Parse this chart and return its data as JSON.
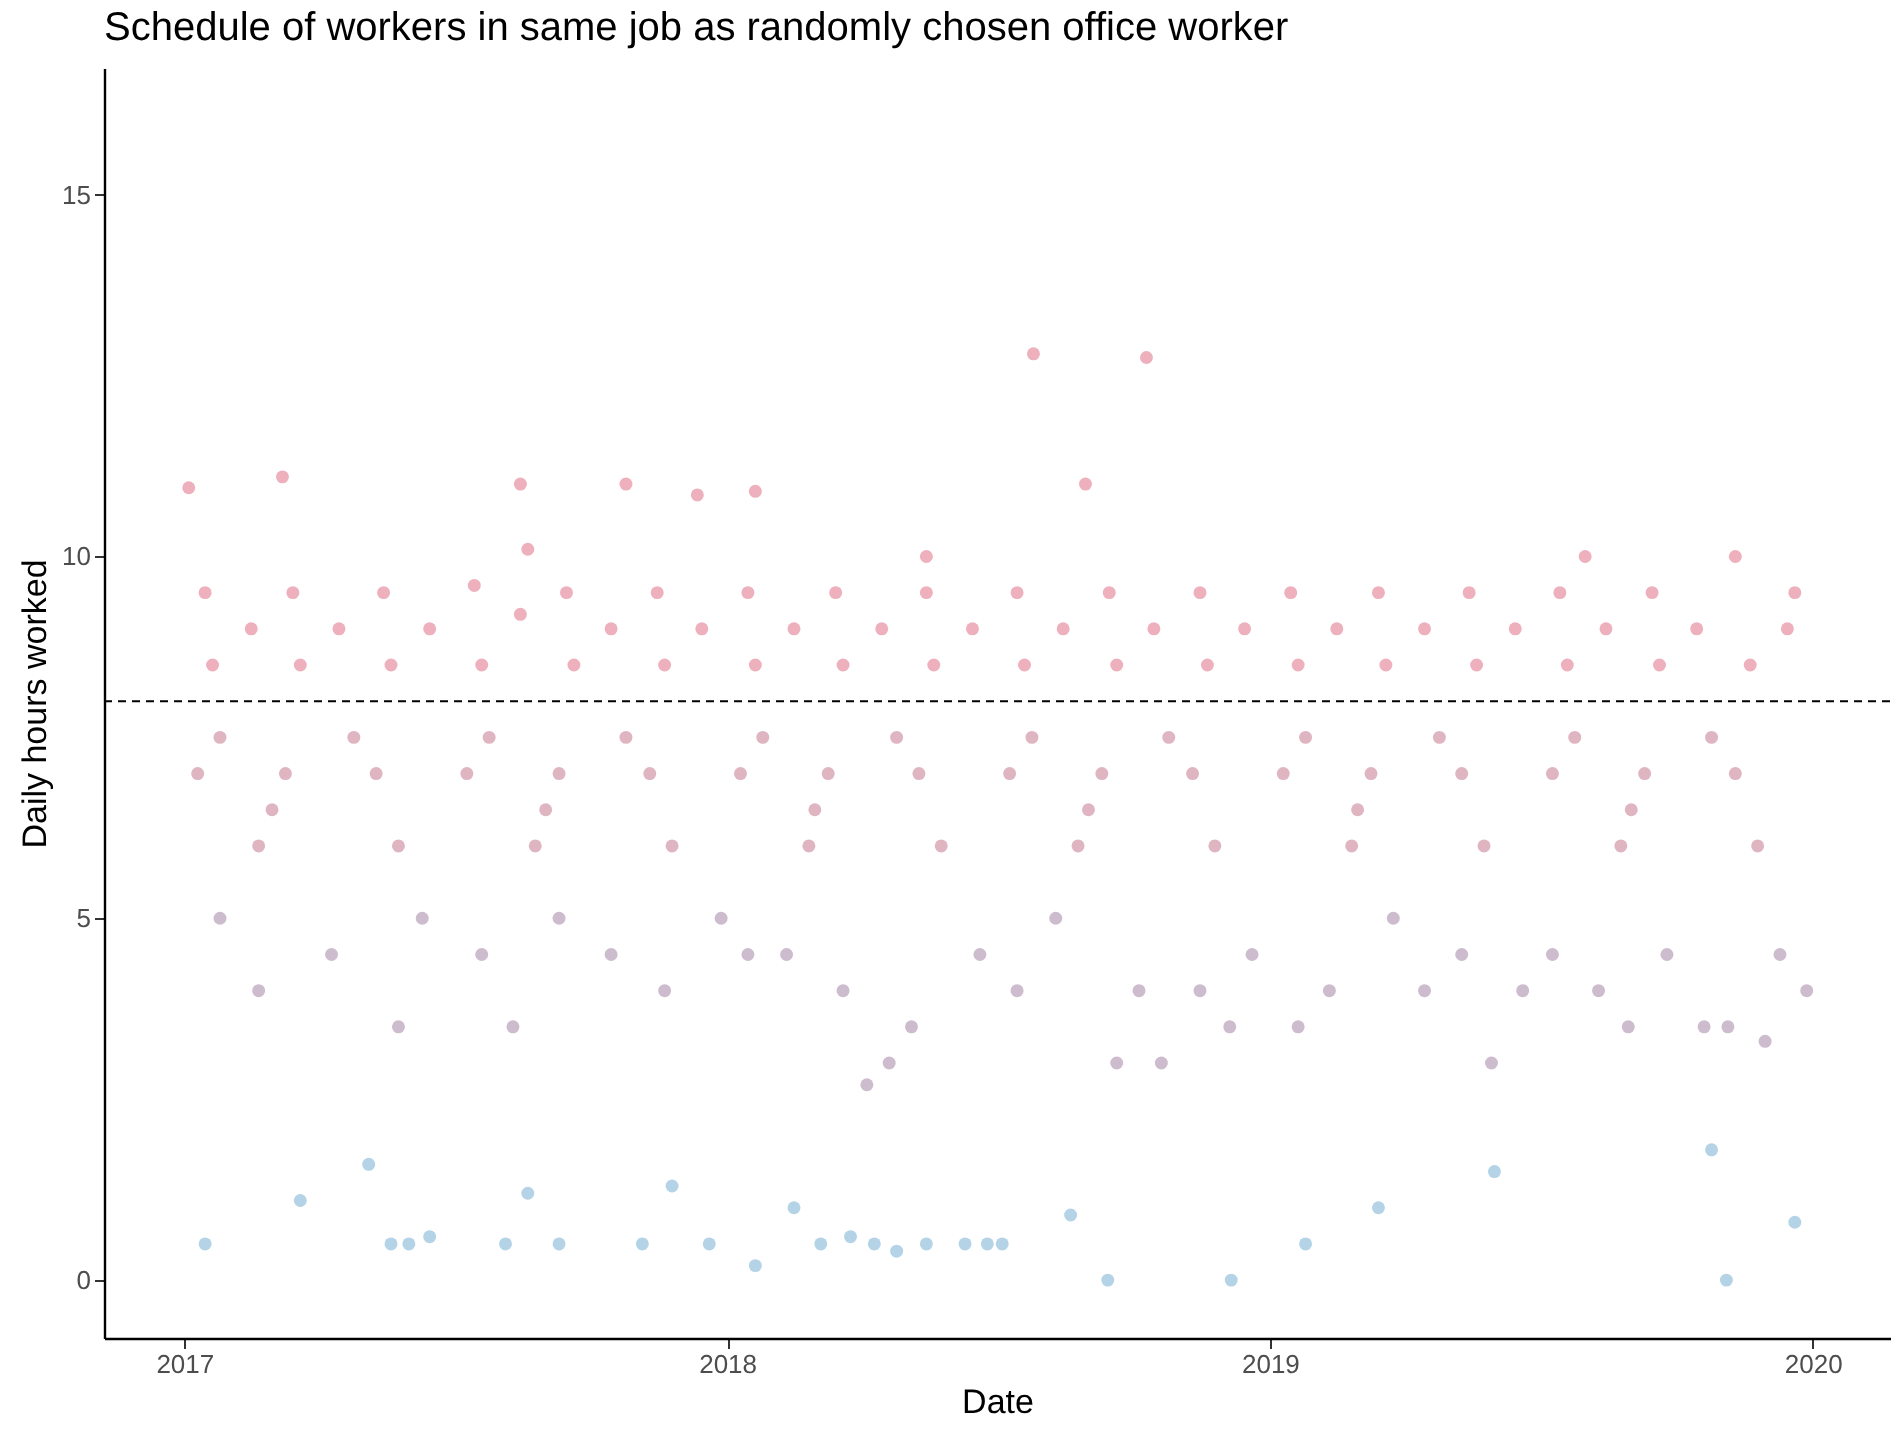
{
  "chart_data": {
    "type": "scatter",
    "title": "Schedule of workers in same job as randomly chosen office worker",
    "xlabel": "Date",
    "ylabel": "Daily hours worked",
    "xlim": [
      "2016-11-08",
      "2020-02-22"
    ],
    "xticks": [
      "2017",
      "2018",
      "2019",
      "2020"
    ],
    "ylim": [
      -0.8,
      16.75
    ],
    "yticks": [
      0,
      5,
      10,
      15
    ],
    "grid": false,
    "marker": "circle",
    "ref_lines": [
      {
        "axis": "y",
        "value": 8,
        "line_style": "dashed",
        "color": "#000000"
      }
    ],
    "series": [
      {
        "color": "#d6506a",
        "x": [
          "2017-01-04",
          "2017-03-08",
          "2017-08-15",
          "2017-10-25",
          "2017-12-12",
          "2018-01-20",
          "2018-05-15",
          "2018-07-26",
          "2018-08-30",
          "2018-10-10",
          "2019-11-10",
          "2017-08-20",
          "2019-08-01",
          "2017-01-15",
          "2017-03-15",
          "2017-05-15",
          "2017-07-15",
          "2017-09-15",
          "2017-11-15",
          "2018-01-15",
          "2018-03-15",
          "2018-05-15",
          "2018-07-15",
          "2018-09-15",
          "2018-11-15",
          "2019-01-15",
          "2019-03-15",
          "2019-05-15",
          "2019-07-15",
          "2019-09-15",
          "2019-12-20",
          "2017-02-15",
          "2017-04-15",
          "2017-06-15",
          "2017-08-15",
          "2017-10-15",
          "2017-12-15",
          "2018-02-15",
          "2018-04-15",
          "2018-06-15",
          "2018-08-15",
          "2018-10-15",
          "2018-12-15",
          "2019-02-15",
          "2019-04-15",
          "2019-06-15",
          "2019-08-15",
          "2019-10-15",
          "2019-12-15",
          "2017-01-20",
          "2017-03-20",
          "2017-05-20",
          "2017-07-20",
          "2017-09-20",
          "2017-11-20",
          "2018-01-20",
          "2018-03-20",
          "2018-05-20",
          "2018-07-20",
          "2018-09-20",
          "2018-11-20",
          "2019-01-20",
          "2019-03-20",
          "2019-05-20",
          "2019-07-20",
          "2019-09-20",
          "2019-11-20"
        ],
        "values": [
          10.95,
          11.1,
          11.0,
          11.0,
          10.85,
          10.9,
          10.0,
          12.8,
          11.0,
          12.75,
          10.0,
          10.1,
          10.0,
          9.5,
          9.5,
          9.5,
          9.6,
          9.5,
          9.5,
          9.5,
          9.5,
          9.5,
          9.5,
          9.5,
          9.5,
          9.5,
          9.5,
          9.5,
          9.5,
          9.5,
          9.5,
          9.0,
          9.0,
          9.0,
          9.2,
          9.0,
          9.0,
          9.0,
          9.0,
          9.0,
          9.0,
          9.0,
          9.0,
          9.0,
          9.0,
          9.0,
          9.0,
          9.0,
          9.0,
          8.5,
          8.5,
          8.5,
          8.5,
          8.5,
          8.5,
          8.5,
          8.5,
          8.5,
          8.5,
          8.5,
          8.5,
          8.5,
          8.5,
          8.5,
          8.5,
          8.5,
          8.5
        ]
      },
      {
        "color": "#b85a78",
        "x": [
          "2017-01-10",
          "2017-03-10",
          "2017-05-10",
          "2017-07-10",
          "2017-09-10",
          "2017-11-10",
          "2018-01-10",
          "2018-03-10",
          "2018-05-10",
          "2018-07-10",
          "2018-09-10",
          "2018-11-10",
          "2019-01-10",
          "2019-03-10",
          "2019-05-10",
          "2019-07-10",
          "2019-09-10",
          "2019-11-10",
          "2017-02-20",
          "2017-05-25",
          "2017-08-25",
          "2017-11-25",
          "2018-02-25",
          "2018-05-25",
          "2018-08-25",
          "2018-11-25",
          "2019-02-25",
          "2019-05-25",
          "2019-08-25",
          "2019-11-25",
          "2017-01-25",
          "2017-04-25",
          "2017-07-25",
          "2017-10-25",
          "2018-01-25",
          "2018-04-25",
          "2018-07-25",
          "2018-10-25",
          "2019-01-25",
          "2019-04-25",
          "2019-07-25",
          "2019-10-25",
          "2017-03-01",
          "2017-09-01",
          "2018-03-01",
          "2018-09-01",
          "2019-03-01",
          "2019-09-01"
        ],
        "values": [
          7,
          7,
          7,
          7,
          7,
          7,
          7,
          7,
          7,
          7,
          7,
          7,
          7,
          7,
          7,
          7,
          7,
          7,
          6,
          6,
          6,
          6,
          6,
          6,
          6,
          6,
          6,
          6,
          6,
          6,
          7.5,
          7.5,
          7.5,
          7.5,
          7.5,
          7.5,
          7.5,
          7.5,
          7.5,
          7.5,
          7.5,
          7.5,
          6.5,
          6.5,
          6.5,
          6.5,
          6.5,
          6.5
        ]
      },
      {
        "color": "#8e6a92",
        "x": [
          "2017-01-25",
          "2017-04-10",
          "2017-05-25",
          "2017-07-20",
          "2017-09-10",
          "2017-11-20",
          "2017-12-28",
          "2018-02-10",
          "2018-03-20",
          "2018-05-05",
          "2018-06-20",
          "2018-08-10",
          "2018-10-05",
          "2018-11-15",
          "2018-12-20",
          "2019-02-10",
          "2019-03-25",
          "2019-05-10",
          "2019-06-20",
          "2019-08-10",
          "2019-09-25",
          "2019-11-05",
          "2019-12-28",
          "2017-02-20",
          "2017-06-10",
          "2017-10-15",
          "2018-01-15",
          "2018-04-20",
          "2018-07-15",
          "2018-09-20",
          "2018-12-05",
          "2019-01-20",
          "2019-04-15",
          "2019-07-10",
          "2019-08-30",
          "2019-10-20",
          "2019-12-10",
          "2017-08-10",
          "2018-04-05",
          "2018-10-20",
          "2019-05-30",
          "2019-11-30"
        ],
        "values": [
          5,
          4.5,
          3.5,
          4.5,
          5,
          4,
          5,
          4.5,
          4,
          3.5,
          4.5,
          5,
          4,
          4,
          4.5,
          4,
          5,
          4.5,
          4,
          4,
          4.5,
          3.5,
          4,
          4,
          5,
          4.5,
          4.5,
          3,
          4,
          3,
          3.5,
          3.5,
          4,
          4.5,
          3.5,
          3.5,
          4.5,
          3.5,
          2.7,
          3,
          3,
          3.3
        ]
      },
      {
        "color": "#5a9ec8",
        "x": [
          "2017-01-15",
          "2017-03-20",
          "2017-05-20",
          "2017-06-01",
          "2017-06-15",
          "2017-08-05",
          "2017-08-20",
          "2017-09-10",
          "2017-11-05",
          "2017-11-25",
          "2017-12-20",
          "2018-01-20",
          "2018-02-15",
          "2018-03-05",
          "2018-03-25",
          "2018-04-10",
          "2018-04-25",
          "2018-05-15",
          "2018-06-10",
          "2018-06-25",
          "2018-07-05",
          "2018-09-14",
          "2018-12-06",
          "2019-01-25",
          "2019-03-15",
          "2019-11-04",
          "2019-12-20",
          "2017-05-05",
          "2018-08-20",
          "2019-06-01",
          "2019-10-25"
        ],
        "values": [
          0.5,
          1.1,
          0.5,
          0.5,
          0.6,
          0.5,
          1.2,
          0.5,
          0.5,
          1.3,
          0.5,
          0.2,
          1.0,
          0.5,
          0.6,
          0.5,
          0.4,
          0.5,
          0.5,
          0.5,
          0.5,
          0.0,
          0.0,
          0.5,
          1.0,
          0.0,
          0.8,
          1.6,
          0.9,
          1.5,
          1.8
        ]
      }
    ]
  }
}
